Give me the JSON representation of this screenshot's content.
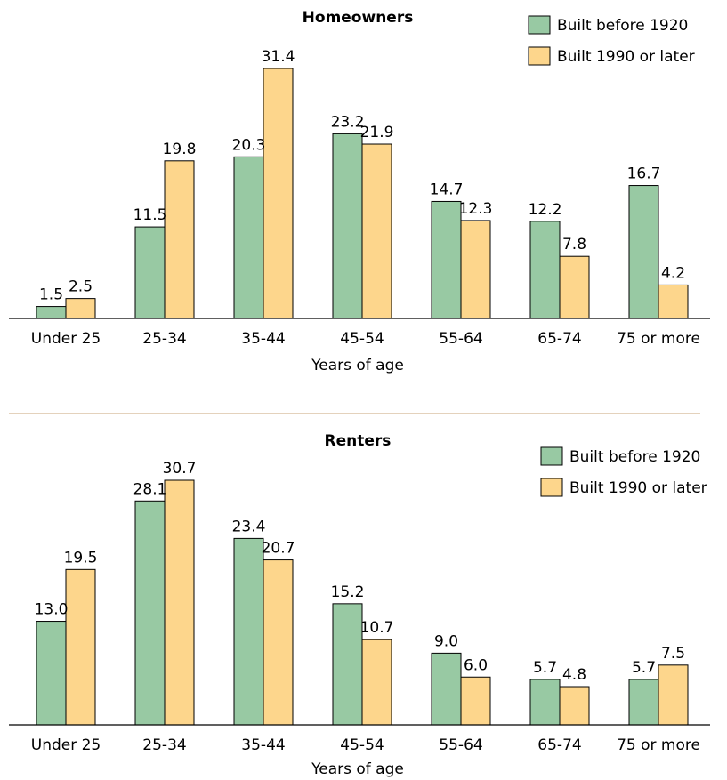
{
  "colors": {
    "series_1": "#98c9a3",
    "series_2": "#fdd68c",
    "separator": "#c8a47a",
    "axis": "#000000"
  },
  "chart_data": [
    {
      "type": "bar",
      "title": "Homeowners",
      "xlabel": "Years of age",
      "ylabel": "",
      "categories": [
        "Under 25",
        "25-34",
        "35-44",
        "45-54",
        "55-64",
        "65-74",
        "75 or more"
      ],
      "series": [
        {
          "name": "Built before 1920",
          "values": [
            1.5,
            11.5,
            20.3,
            23.2,
            14.7,
            12.2,
            16.7
          ]
        },
        {
          "name": "Built 1990 or later",
          "values": [
            2.5,
            19.8,
            31.4,
            21.9,
            12.3,
            7.8,
            4.2
          ]
        }
      ],
      "value_labels": [
        [
          "1.5",
          "11.5",
          "20.3",
          "23.2",
          "14.7",
          "12.2",
          "16.7"
        ],
        [
          "2.5",
          "19.8",
          "31.4",
          "21.9",
          "12.3",
          "7.8",
          "4.2"
        ]
      ],
      "ylim": [
        0,
        31.4
      ],
      "grid": false,
      "legend": "top-right"
    },
    {
      "type": "bar",
      "title": "Renters",
      "xlabel": "Years of age",
      "ylabel": "",
      "categories": [
        "Under 25",
        "25-34",
        "35-44",
        "45-54",
        "55-64",
        "65-74",
        "75 or more"
      ],
      "series": [
        {
          "name": "Built before 1920",
          "values": [
            13.0,
            28.1,
            23.4,
            15.2,
            9.0,
            5.7,
            5.7
          ]
        },
        {
          "name": "Built 1990 or later",
          "values": [
            19.5,
            30.7,
            20.7,
            10.7,
            6.0,
            4.8,
            7.5
          ]
        }
      ],
      "value_labels": [
        [
          "13.0",
          "28.1",
          "23.4",
          "15.2",
          "9.0",
          "5.7",
          "5.7"
        ],
        [
          "19.5",
          "30.7",
          "20.7",
          "10.7",
          "6.0",
          "4.8",
          "7.5"
        ]
      ],
      "ylim": [
        0,
        30.7
      ],
      "grid": false,
      "legend": "top-right"
    }
  ]
}
